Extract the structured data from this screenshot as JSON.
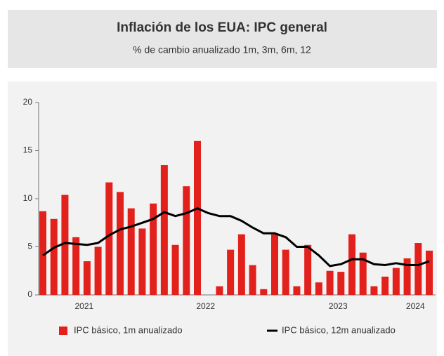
{
  "chart_data": {
    "type": "bar",
    "title": "Inflación de los EUA: IPC general",
    "subtitle": "% de cambio anualizado 1m, 3m, 6m, 12",
    "categories": [
      null,
      null,
      null,
      null,
      "2021",
      null,
      null,
      null,
      null,
      null,
      null,
      null,
      null,
      null,
      null,
      "2022",
      null,
      null,
      null,
      null,
      null,
      null,
      null,
      null,
      null,
      null,
      null,
      "2023",
      null,
      null,
      null,
      null,
      null,
      null,
      "2024",
      null
    ],
    "series": [
      {
        "name": "IPC básico, 1m anualizado",
        "type": "bar",
        "color": "#e3211c",
        "values": [
          8.7,
          7.9,
          10.4,
          6.0,
          3.5,
          5.0,
          11.7,
          10.7,
          9.0,
          6.9,
          9.5,
          13.5,
          5.2,
          11.3,
          16.0,
          null,
          0.9,
          4.7,
          6.3,
          3.1,
          0.6,
          6.3,
          4.7,
          0.9,
          5.2,
          1.3,
          2.5,
          2.4,
          6.3,
          4.4,
          0.9,
          1.9,
          2.8,
          3.8,
          5.4,
          4.6
        ]
      },
      {
        "name": "IPC básico, 12m anualizado",
        "type": "line",
        "color": "#000000",
        "values": [
          4.1,
          4.9,
          5.4,
          5.3,
          5.2,
          5.4,
          6.2,
          6.8,
          7.1,
          7.5,
          7.9,
          8.6,
          8.2,
          8.5,
          9.0,
          8.5,
          8.2,
          8.2,
          7.7,
          7.0,
          6.4,
          6.4,
          6.0,
          5.0,
          5.0,
          4.1,
          3.0,
          3.2,
          3.7,
          3.7,
          3.2,
          3.1,
          3.3,
          3.1,
          3.1,
          3.5
        ]
      }
    ],
    "ylim": [
      0,
      20
    ],
    "yticks": [
      0,
      5,
      10,
      15,
      20
    ],
    "grid": false,
    "legend": "bottom"
  }
}
